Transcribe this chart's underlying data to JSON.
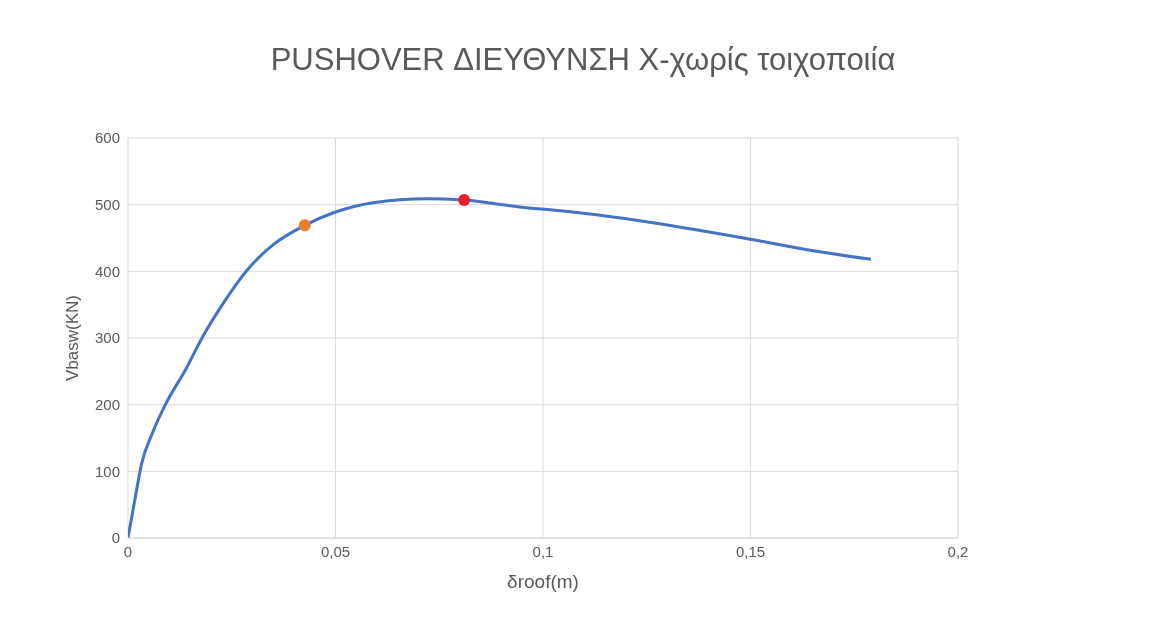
{
  "chart_data": {
    "type": "line",
    "title": "PUSHOVER ΔΙΕΥΘΥΝΣΗ Χ-χωρίς τοιχοποιία",
    "xlabel": "δroof(m)",
    "ylabel": "Vbasw(KN)",
    "xlim": [
      0,
      0.2
    ],
    "xticks": [
      0,
      {
        "value": 0.05,
        "label": "0,05"
      },
      {
        "value": 0.1,
        "label": "0,1"
      },
      {
        "value": 0.15,
        "label": "0,15"
      },
      {
        "value": 0.2,
        "label": "0,2"
      }
    ],
    "ylim": [
      0,
      600
    ],
    "yticks": [
      0,
      100,
      200,
      300,
      400,
      500,
      600
    ],
    "grid": true,
    "legend": false,
    "series": [
      {
        "color": "#4472c4",
        "marker": "none",
        "x": [
          0,
          0.0017,
          0.0033,
          0.0058,
          0.009,
          0.014,
          0.018,
          0.022,
          0.029,
          0.035,
          0.0426,
          0.05,
          0.059,
          0.072,
          0.081,
          0.0965,
          0.1004,
          0.151,
          0.164,
          0.179
        ],
        "values": [
          0,
          59,
          112,
          156,
          200,
          254,
          302,
          343,
          404,
          440,
          469,
          489,
          503,
          509,
          507,
          495,
          493,
          447,
          432,
          418
        ]
      },
      {
        "type": "scatter",
        "color": "#ed7d31",
        "marker": "circle",
        "x": [
          0.0426
        ],
        "values": [
          469
        ]
      },
      {
        "type": "scatter",
        "color": "#e8202a",
        "marker": "circle",
        "x": [
          0.081
        ],
        "values": [
          507
        ]
      }
    ]
  }
}
